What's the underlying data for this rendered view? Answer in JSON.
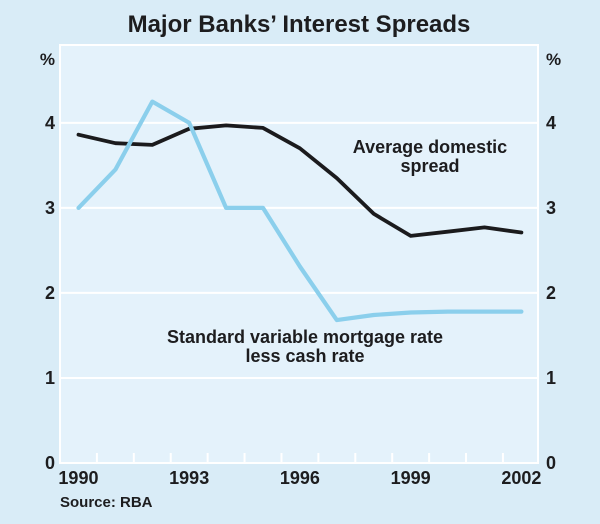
{
  "chart": {
    "title": "Major Banks’ Interest Spreads",
    "y_unit": "%",
    "source": "Source: RBA",
    "annotations": [
      {
        "series": "Average domestic spread",
        "lines": [
          "Average domestic",
          "spread"
        ]
      },
      {
        "series": "Standard variable mortgage rate less cash rate",
        "lines": [
          "Standard variable mortgage rate",
          "less cash rate"
        ]
      }
    ]
  },
  "chart_data": {
    "type": "line",
    "title": "Major Banks’ Interest Spreads",
    "ylabel": "%",
    "x": [
      1990,
      1991,
      1992,
      1993,
      1994,
      1995,
      1996,
      1997,
      1998,
      1999,
      2000,
      2001,
      2002
    ],
    "series": [
      {
        "name": "Average domestic spread",
        "color": "#1b1b1d",
        "values": [
          3.86,
          3.76,
          3.74,
          3.93,
          3.97,
          3.94,
          3.7,
          3.35,
          2.93,
          2.67,
          2.72,
          2.77,
          2.71
        ]
      },
      {
        "name": "Standard variable mortgage rate less cash rate",
        "color": "#8bcfec",
        "values": [
          3.0,
          3.45,
          4.25,
          4.0,
          3.0,
          3.0,
          2.31,
          1.68,
          1.74,
          1.77,
          1.78,
          1.78,
          1.78
        ]
      }
    ],
    "xlim": [
      1989.5,
      2002.45
    ],
    "ylim": [
      0,
      4.915
    ],
    "yticks": [
      0,
      1,
      2,
      3,
      4
    ],
    "ytick_sides": "both",
    "xtick_labels": [
      1990,
      1993,
      1996,
      1999,
      2002
    ],
    "minor_xticks_start": 1990.5,
    "minor_xticks_end": 2001.5,
    "grid": "horizontal",
    "legend_position": "inline-annotations",
    "source": "Source: RBA",
    "colors": {
      "background": "#d9ecf7",
      "plot_background": "#e4f2fb",
      "grid": "#ffffff",
      "text": "#1d1d1f"
    }
  }
}
